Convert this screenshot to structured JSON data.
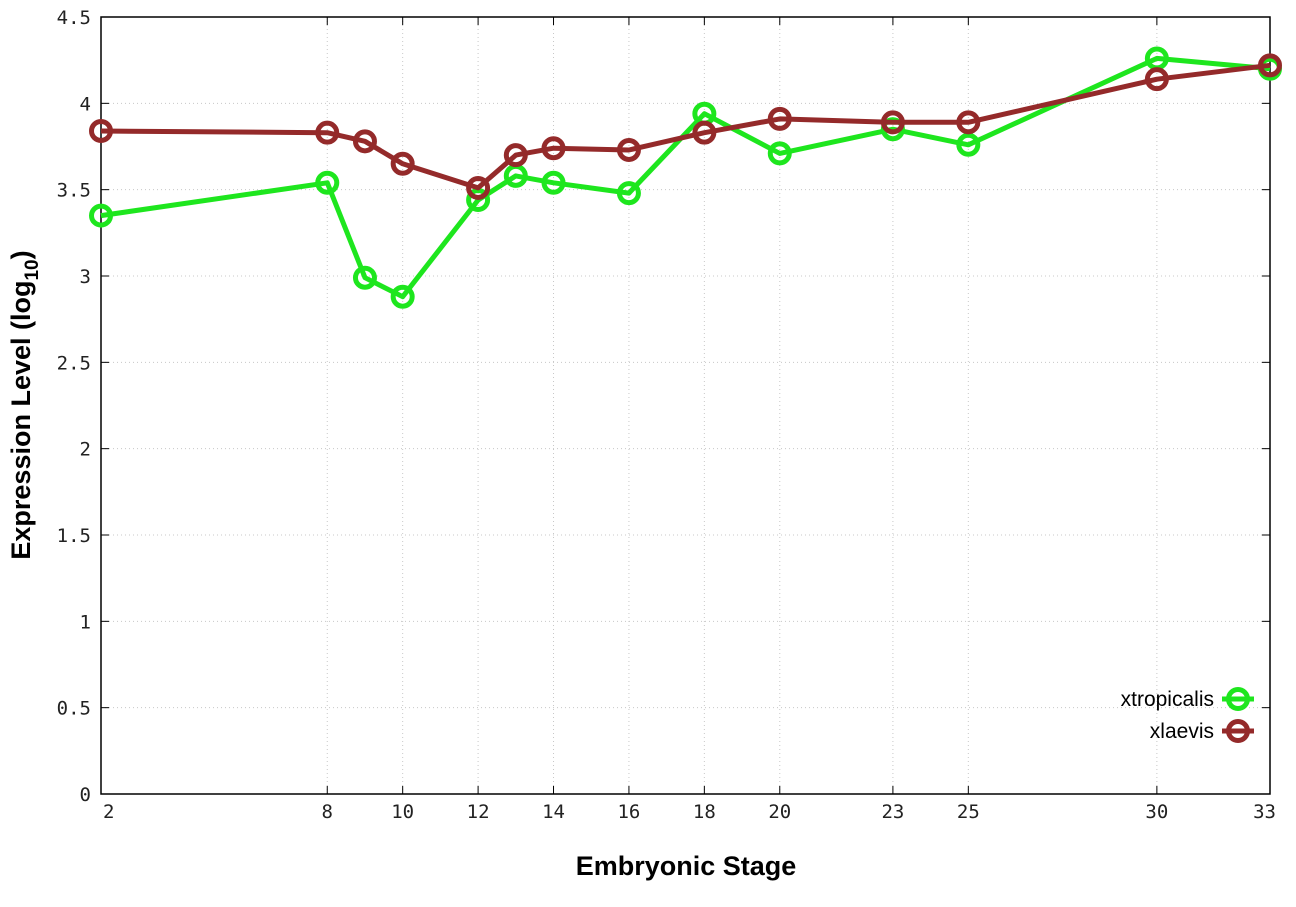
{
  "chart_data": {
    "type": "line",
    "xlabel": "Embryonic Stage",
    "ylabel_main": "Expression Level (log",
    "ylabel_sub": "10",
    "ylabel_close": ")",
    "xlim": [
      2,
      33
    ],
    "ylim": [
      0,
      4.5
    ],
    "x_ticks": [
      2,
      8,
      10,
      12,
      14,
      16,
      18,
      20,
      23,
      25,
      30,
      33
    ],
    "y_ticks": [
      "0",
      "0.5",
      "1",
      "1.5",
      "2",
      "2.5",
      "3",
      "3.5",
      "4",
      "4.5"
    ],
    "x_positions": [
      2,
      8,
      9,
      10,
      12,
      13,
      14,
      16,
      18,
      20,
      23,
      25,
      30,
      33
    ],
    "grid": true,
    "legend_position": "bottom-right",
    "series": [
      {
        "name": "xtropicalis",
        "color": "#1ee61e",
        "values": [
          3.35,
          3.54,
          2.99,
          2.88,
          3.44,
          3.58,
          3.54,
          3.48,
          3.94,
          3.71,
          3.85,
          3.76,
          4.26,
          4.2
        ]
      },
      {
        "name": "xlaevis",
        "color": "#942a2a",
        "values": [
          3.84,
          3.83,
          3.78,
          3.65,
          3.51,
          3.7,
          3.74,
          3.73,
          3.83,
          3.91,
          3.89,
          3.89,
          4.14,
          4.22
        ]
      }
    ]
  }
}
